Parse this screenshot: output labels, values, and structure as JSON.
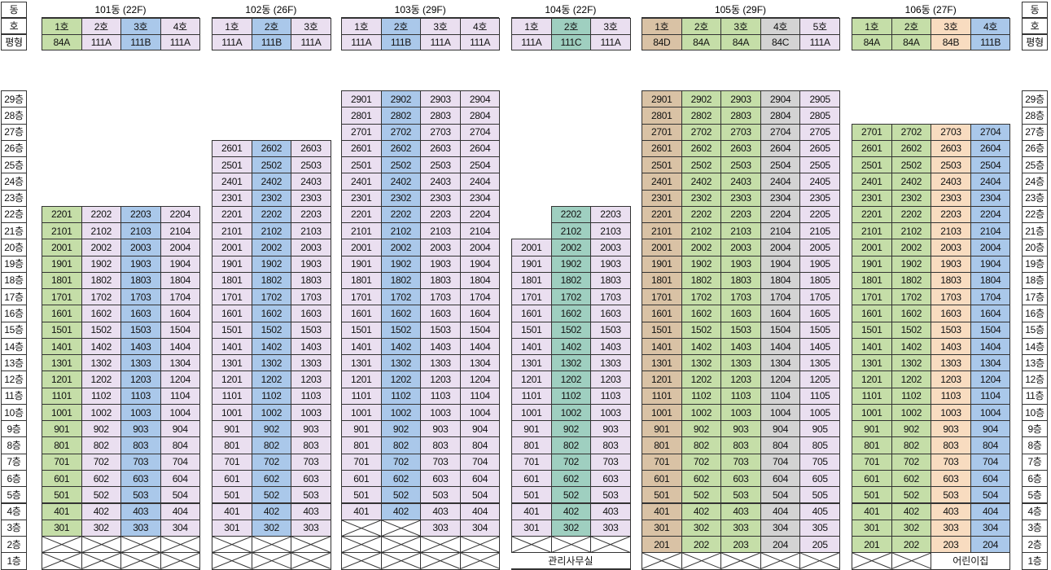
{
  "labels": {
    "dong": "동",
    "ho": "호",
    "type": "평형"
  },
  "buildings": [
    {
      "id": "b101",
      "name": "101동 (22F)",
      "top": 22,
      "nonResidential": [
        1,
        2
      ],
      "units": [
        {
          "ho": "1호",
          "type": "84A",
          "color": "#c5dea8"
        },
        {
          "ho": "2호",
          "type": "111A",
          "color": "#eadff0"
        },
        {
          "ho": "3호",
          "type": "111B",
          "color": "#aac8ea"
        },
        {
          "ho": "4호",
          "type": "111A",
          "color": "#eadff0"
        }
      ]
    },
    {
      "id": "b102",
      "name": "102동 (26F)",
      "top": 26,
      "nonResidential": [
        1,
        2
      ],
      "units": [
        {
          "ho": "1호",
          "type": "111A",
          "color": "#eadff0"
        },
        {
          "ho": "2호",
          "type": "111B",
          "color": "#aac8ea"
        },
        {
          "ho": "3호",
          "type": "111A",
          "color": "#eadff0"
        }
      ]
    },
    {
      "id": "b103",
      "name": "103동 (29F)",
      "top": 29,
      "nonResidential": [
        1,
        2
      ],
      "empty3": [
        0,
        1
      ],
      "units": [
        {
          "ho": "1호",
          "type": "111A",
          "color": "#eadff0"
        },
        {
          "ho": "2호",
          "type": "111B",
          "color": "#aac8ea"
        },
        {
          "ho": "3호",
          "type": "111A",
          "color": "#eadff0"
        },
        {
          "ho": "4호",
          "type": "111A",
          "color": "#eadff0"
        }
      ]
    },
    {
      "id": "b104",
      "name": "104동 (22F)",
      "top": 22,
      "nonResidential": [
        1,
        2
      ],
      "top_overrides": [
        20,
        22,
        22
      ],
      "officeLabel": "관리사무실",
      "units": [
        {
          "ho": "1호",
          "type": "111A",
          "color": "#eadff0"
        },
        {
          "ho": "2호",
          "type": "111C",
          "color": "#9fcfc0"
        },
        {
          "ho": "3호",
          "type": "111A",
          "color": "#eadff0"
        }
      ]
    },
    {
      "id": "b105",
      "name": "105동 (29F)",
      "top": 29,
      "nonResidential": [
        1
      ],
      "units": [
        {
          "ho": "1호",
          "type": "84D",
          "color": "#d9c2a5"
        },
        {
          "ho": "2호",
          "type": "84A",
          "color": "#c5dea8"
        },
        {
          "ho": "3호",
          "type": "84A",
          "color": "#c5dea8"
        },
        {
          "ho": "4호",
          "type": "84C",
          "color": "#d3d3d3"
        },
        {
          "ho": "5호",
          "type": "111A",
          "color": "#eadff0"
        }
      ]
    },
    {
      "id": "b106",
      "name": "106동 (27F)",
      "top": 27,
      "nonResidential": [
        1
      ],
      "daycareLabel": "어린이집",
      "units": [
        {
          "ho": "1호",
          "type": "84A",
          "color": "#c5dea8"
        },
        {
          "ho": "2호",
          "type": "84A",
          "color": "#c5dea8"
        },
        {
          "ho": "3호",
          "type": "84B",
          "color": "#f8dcc0"
        },
        {
          "ho": "4호",
          "type": "111B",
          "color": "#aac8ea"
        }
      ]
    }
  ],
  "floorLabels": [
    "29층",
    "28층",
    "27층",
    "26층",
    "25층",
    "24층",
    "23층",
    "22층",
    "21층",
    "20층",
    "19층",
    "18층",
    "17층",
    "16층",
    "15층",
    "14층",
    "13층",
    "12층",
    "11층",
    "10층",
    "9층",
    "8층",
    "7층",
    "6층",
    "5층",
    "4층",
    "3층",
    "2층",
    "1층"
  ]
}
